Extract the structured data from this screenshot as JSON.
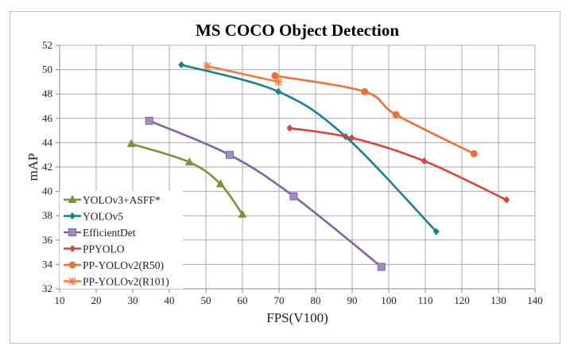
{
  "chart_data": {
    "type": "line",
    "title": "MS COCO Object Detection",
    "xlabel": "FPS(V100)",
    "ylabel": "mAP",
    "xlim": [
      10,
      140
    ],
    "ylim": [
      32,
      52
    ],
    "xticks": [
      10,
      20,
      30,
      40,
      50,
      60,
      70,
      80,
      90,
      100,
      110,
      120,
      130,
      140
    ],
    "yticks": [
      32,
      34,
      36,
      38,
      40,
      42,
      44,
      46,
      48,
      50,
      52
    ],
    "grid": true,
    "legend_position": "bottom-left",
    "series": [
      {
        "name": "YOLOv3+ASFF*",
        "color": "#77933C",
        "marker": "triangle",
        "x": [
          29.6,
          45.5,
          54.0,
          60.0
        ],
        "y": [
          43.9,
          42.4,
          40.6,
          38.1
        ]
      },
      {
        "name": "YOLOv5",
        "color": "#17818F",
        "marker": "diamond",
        "x": [
          43.3,
          69.8,
          88.2,
          113.0
        ],
        "y": [
          50.4,
          48.2,
          44.5,
          36.7
        ]
      },
      {
        "name": "EfficientDet",
        "color": "#8064A2",
        "marker": "square",
        "x": [
          34.5,
          56.5,
          74.0,
          98.0
        ],
        "y": [
          45.8,
          43.0,
          39.6,
          33.8
        ]
      },
      {
        "name": "PPYOLO",
        "color": "#E0403A",
        "marker": "diamond",
        "x": [
          72.9,
          89.9,
          109.7,
          132.2
        ],
        "y": [
          45.2,
          44.4,
          42.5,
          39.3
        ]
      },
      {
        "name": "PP-YOLOv2(R50)",
        "color": "#F46E34",
        "marker": "circle",
        "x": [
          68.9,
          93.4,
          102.0,
          123.3
        ],
        "y": [
          49.5,
          48.2,
          46.3,
          43.1
        ]
      },
      {
        "name": "PP-YOLOv2(R101)",
        "color": "#F57A3D",
        "marker": "star",
        "x": [
          50.3,
          69.8
        ],
        "y": [
          50.3,
          49.0
        ]
      }
    ]
  }
}
